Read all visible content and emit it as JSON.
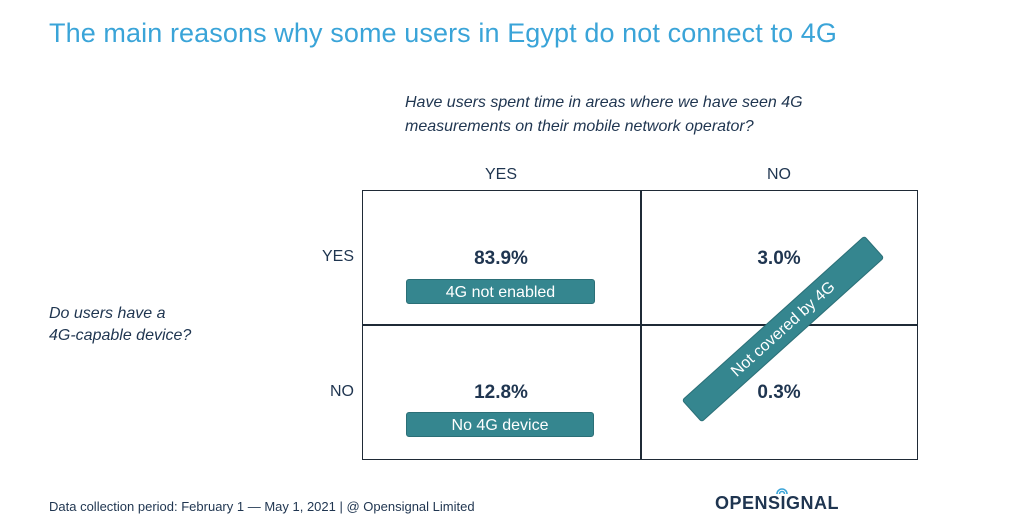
{
  "title": "The main reasons why some users in Egypt do not connect to 4G",
  "question_top": "Have users spent time in areas where we have seen 4G\nmeasurements on their mobile network operator?",
  "question_left": "Do users have a\n4G-capable device?",
  "columns": [
    "YES",
    "NO"
  ],
  "rows": [
    "YES",
    "NO"
  ],
  "chart_data": {
    "type": "table",
    "column_axis": "Have users spent time in areas where we have seen 4G measurements on their mobile network operator?",
    "row_axis": "Do users have a 4G-capable device?",
    "cells": [
      {
        "row": "YES",
        "column": "YES",
        "value": "83.9%",
        "label": "4G not enabled"
      },
      {
        "row": "YES",
        "column": "NO",
        "value": "3.0%",
        "label": ""
      },
      {
        "row": "NO",
        "column": "YES",
        "value": "12.8%",
        "label": "No 4G device"
      },
      {
        "row": "NO",
        "column": "NO",
        "value": "0.3%",
        "label": ""
      }
    ],
    "diagonal_label": "Not covered by 4G"
  },
  "colors": {
    "title": "#3aa4d8",
    "tag_fill": "#35868f",
    "text": "#1f3550"
  },
  "footer": "Data collection period: February 1 — May 1, 2021 | @ Opensignal Limited",
  "logo_text": "OPENSIGNAL"
}
